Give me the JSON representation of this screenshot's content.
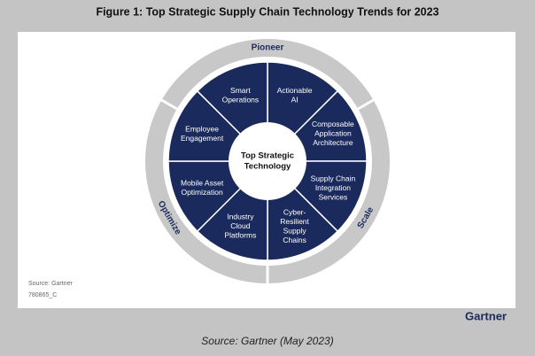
{
  "title": "Figure 1: Top Strategic Supply Chain Technology Trends for 2023",
  "wheel": {
    "center_label": [
      "Top Strategic",
      "Technology"
    ],
    "segments": [
      [
        "Actionable",
        "AI"
      ],
      [
        "Composable",
        "Application",
        "Architecture"
      ],
      [
        "Supply Chain",
        "Integration",
        "Services"
      ],
      [
        "Cyber-",
        "Resilient",
        "Supply",
        "Chains"
      ],
      [
        "Industry",
        "Cloud",
        "Platforms"
      ],
      [
        "Mobile Asset",
        "Optimization"
      ],
      [
        "Employee",
        "Engagement"
      ],
      [
        "Smart",
        "Operations"
      ]
    ],
    "ring_labels": [
      "Pioneer",
      "Scale",
      "Optimize"
    ]
  },
  "panel": {
    "source": "Source: Gartner",
    "id": "780865_C"
  },
  "logo": "Gartner",
  "caption": "Source: Gartner (May 2023)"
}
